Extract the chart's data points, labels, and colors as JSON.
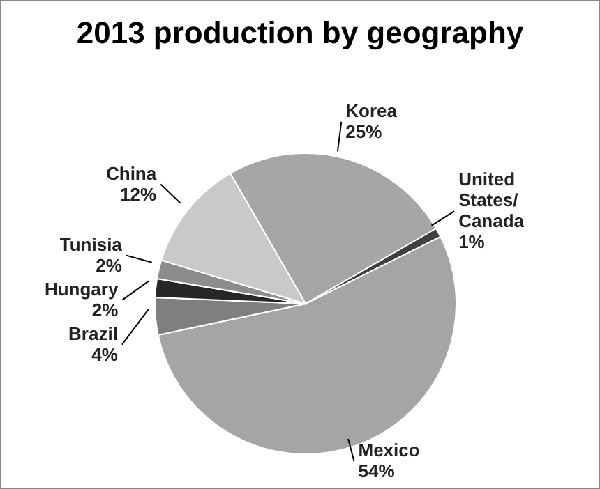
{
  "chart_data": {
    "type": "pie",
    "title": "2013 production by geography",
    "categories": [
      "Korea",
      "United States/ Canada",
      "Mexico",
      "Brazil",
      "Hungary",
      "Tunisia",
      "China"
    ],
    "values": [
      25,
      1,
      54,
      4,
      2,
      2,
      12
    ],
    "colors": [
      "#a6a6a6",
      "#404040",
      "#a5a5a5",
      "#7f7f7f",
      "#262626",
      "#8c8c8c",
      "#c9c9c9"
    ],
    "value_labels": [
      "25%",
      "1%",
      "54%",
      "4%",
      "2%",
      "2%",
      "12%"
    ]
  }
}
